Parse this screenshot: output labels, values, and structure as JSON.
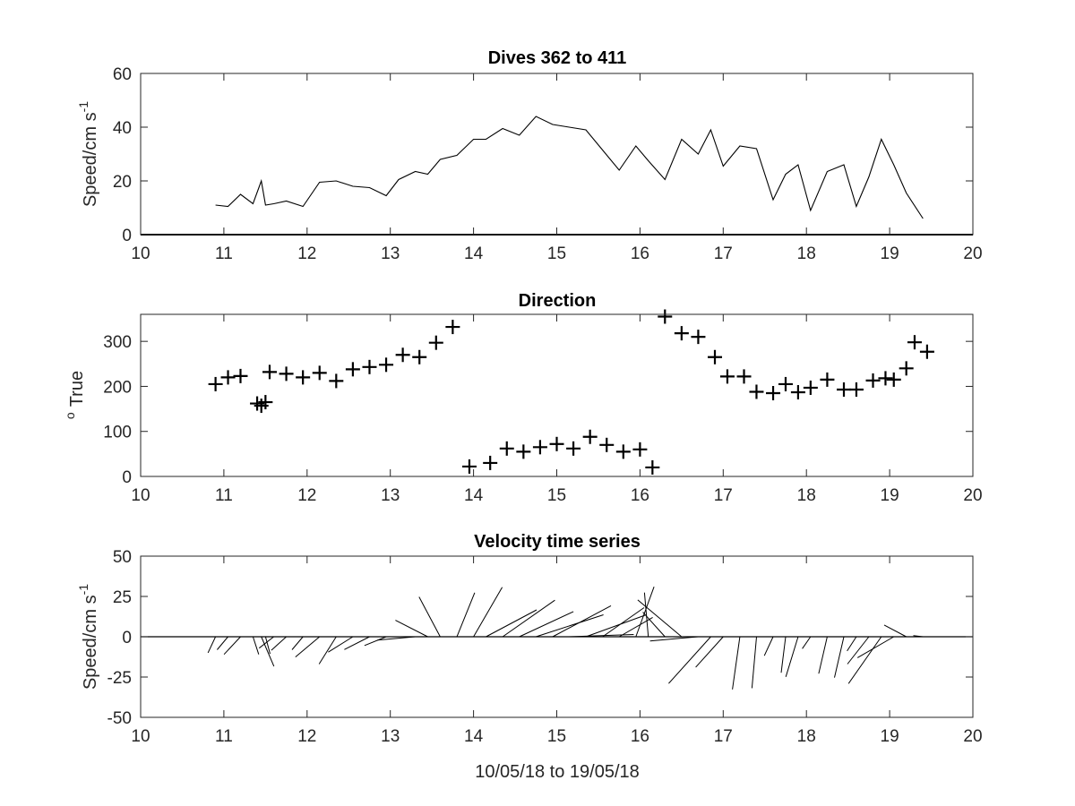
{
  "chart_data": [
    {
      "type": "line",
      "title": "Dives 362 to 411",
      "ylabel_main": "Speed/cm s",
      "ylabel_sup": "-1",
      "xlim": [
        10,
        20
      ],
      "ylim": [
        0,
        60
      ],
      "xticks": [
        "10",
        "11",
        "12",
        "13",
        "14",
        "15",
        "16",
        "17",
        "18",
        "19",
        "20"
      ],
      "yticks": [
        "0",
        "20",
        "40",
        "60"
      ],
      "series": [
        {
          "x": [
            10.9,
            11.05,
            11.2,
            11.35,
            11.45,
            11.5,
            11.6,
            11.75,
            11.95,
            12.15,
            12.35,
            12.55,
            12.75,
            12.95,
            13.1,
            13.3,
            13.45,
            13.6,
            13.8,
            14.0,
            14.15,
            14.35,
            14.55,
            14.75,
            14.95,
            15.15,
            15.35,
            15.55,
            15.75,
            15.95,
            16.1,
            16.3,
            16.5,
            16.7,
            16.85,
            17.0,
            17.2,
            17.4,
            17.6,
            17.75,
            17.9,
            18.05,
            18.25,
            18.45,
            18.6,
            18.75,
            18.9,
            19.05,
            19.2,
            19.4
          ],
          "y": [
            11,
            10.5,
            15,
            11.5,
            20,
            11,
            11.5,
            12.5,
            10.5,
            19.5,
            20,
            18,
            17.5,
            14.5,
            20.5,
            23.5,
            22.5,
            28,
            29.5,
            35.5,
            35.5,
            39.5,
            37,
            44,
            41,
            40,
            39,
            31.5,
            24,
            33,
            27.5,
            20.5,
            35.5,
            30,
            39,
            25.5,
            33,
            32,
            13,
            22.5,
            26,
            9,
            23.5,
            26,
            10.5,
            21.5,
            35.5,
            26,
            15.5,
            6
          ]
        }
      ]
    },
    {
      "type": "scatter",
      "title": "Direction",
      "ylabel_main": "True",
      "ylabel_sup": "o",
      "xlim": [
        10,
        20
      ],
      "ylim": [
        0,
        360
      ],
      "xticks": [
        "10",
        "11",
        "12",
        "13",
        "14",
        "15",
        "16",
        "17",
        "18",
        "19",
        "20"
      ],
      "yticks": [
        "0",
        "100",
        "200",
        "300"
      ],
      "marker": "+",
      "series": [
        {
          "x": [
            10.9,
            11.05,
            11.2,
            11.4,
            11.45,
            11.5,
            11.55,
            11.75,
            11.95,
            12.15,
            12.35,
            12.55,
            12.75,
            12.95,
            13.15,
            13.35,
            13.55,
            13.75,
            13.95,
            14.2,
            14.4,
            14.6,
            14.8,
            15.0,
            15.2,
            15.4,
            15.6,
            15.8,
            16.0,
            16.15,
            16.3,
            16.5,
            16.7,
            16.9,
            17.05,
            17.25,
            17.4,
            17.6,
            17.75,
            17.9,
            18.05,
            18.25,
            18.45,
            18.6,
            18.8,
            18.95,
            19.05,
            19.2,
            19.3,
            19.45
          ],
          "y": [
            205,
            220,
            223,
            162,
            157,
            165,
            232,
            228,
            220,
            230,
            212,
            238,
            243,
            248,
            270,
            265,
            297,
            332,
            22,
            30,
            62,
            55,
            65,
            72,
            62,
            88,
            70,
            55,
            60,
            20,
            355,
            318,
            310,
            265,
            222,
            222,
            188,
            185,
            205,
            187,
            197,
            215,
            193,
            193,
            213,
            218,
            215,
            240,
            298,
            277
          ]
        }
      ]
    },
    {
      "type": "line",
      "title": "Velocity time series",
      "ylabel_main": "Speed/cm s",
      "ylabel_sup": "-1",
      "xlabel": "10/05/18 to 19/05/18",
      "xlim": [
        10,
        20
      ],
      "ylim": [
        -50,
        50
      ],
      "xticks": [
        "10",
        "11",
        "12",
        "13",
        "14",
        "15",
        "16",
        "17",
        "18",
        "19",
        "20"
      ],
      "yticks": [
        "-50",
        "-25",
        "0",
        "25",
        "50"
      ],
      "note": "stick plot: each stick starts on the zero line and points along the current direction, length equals speed",
      "baseline": 0
    }
  ]
}
